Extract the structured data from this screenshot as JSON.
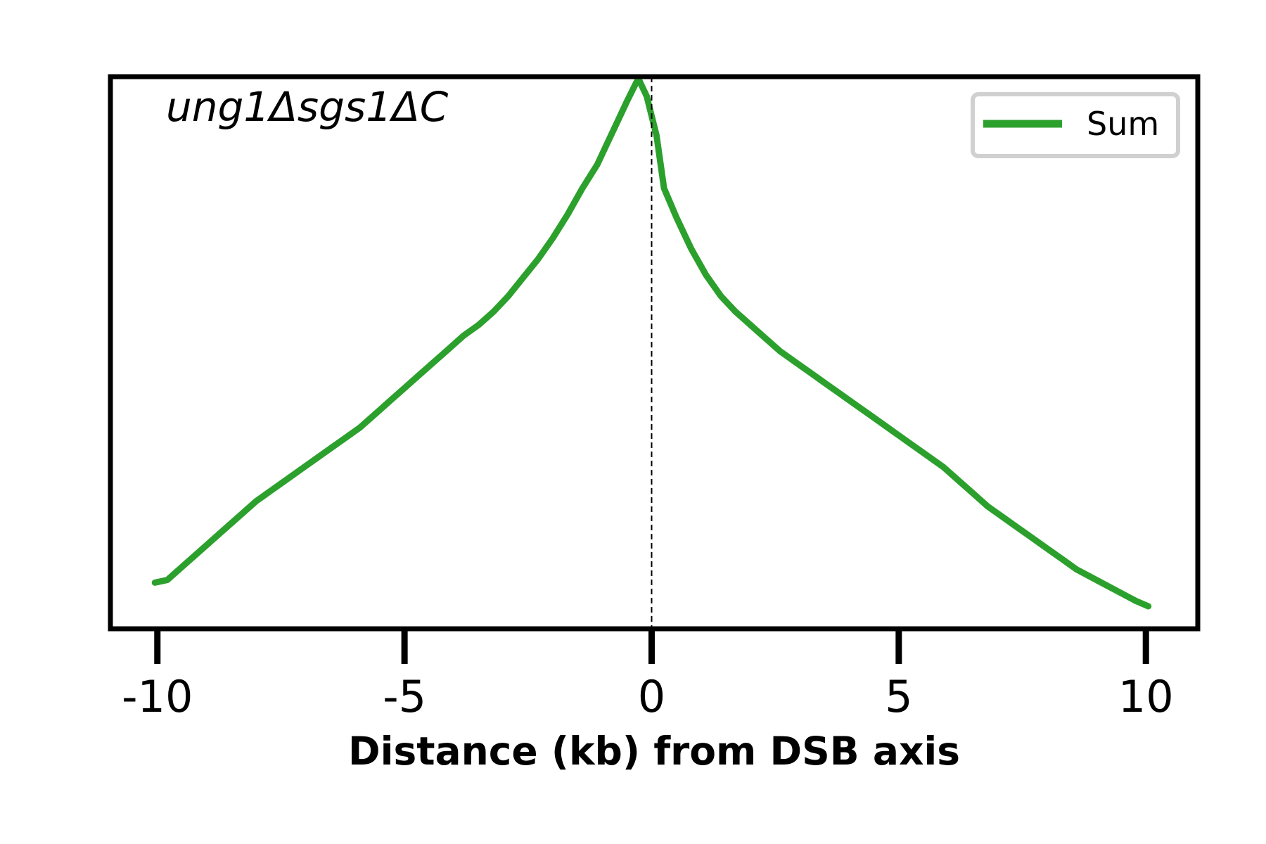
{
  "chart_data": {
    "type": "line",
    "title": "ung1Δsgs1ΔC",
    "xlabel": "Distance (kb) from DSB axis",
    "ylabel": "",
    "xlim": [
      -10.95,
      11.05
    ],
    "ylim": [
      0,
      1.05
    ],
    "x_ticks": [
      -10,
      -5,
      0,
      5,
      10
    ],
    "x_tick_labels": [
      "-10",
      "-5",
      "0",
      "5",
      "10"
    ],
    "y_ticks_shown": false,
    "grid": false,
    "legend_position": "top-right",
    "reference_line": {
      "x": 0,
      "style": "dashed",
      "color": "#000000"
    },
    "colors": {
      "series": "#2ca02c",
      "axis": "#000000",
      "legend_border": "#d0d0d0"
    },
    "series": [
      {
        "name": "Sum",
        "x": [
          -10.05,
          -9.8,
          -9.5,
          -9.2,
          -8.9,
          -8.6,
          -8.3,
          -8.0,
          -7.7,
          -7.4,
          -7.1,
          -6.8,
          -6.5,
          -6.2,
          -5.9,
          -5.6,
          -5.3,
          -5.0,
          -4.7,
          -4.4,
          -4.1,
          -3.8,
          -3.5,
          -3.2,
          -2.9,
          -2.6,
          -2.3,
          -2.0,
          -1.7,
          -1.4,
          -1.1,
          -0.9,
          -0.7,
          -0.5,
          -0.3,
          -0.25,
          -0.1,
          0.1,
          0.25,
          0.5,
          0.8,
          1.1,
          1.4,
          1.7,
          2.0,
          2.3,
          2.6,
          2.9,
          3.2,
          3.5,
          3.8,
          4.1,
          4.4,
          4.7,
          5.0,
          5.3,
          5.6,
          5.9,
          6.2,
          6.5,
          6.8,
          7.1,
          7.4,
          7.7,
          8.0,
          8.3,
          8.6,
          8.9,
          9.2,
          9.5,
          9.8,
          10.05
        ],
        "values": [
          0.045,
          0.05,
          0.075,
          0.1,
          0.125,
          0.15,
          0.175,
          0.2,
          0.22,
          0.24,
          0.26,
          0.28,
          0.3,
          0.32,
          0.34,
          0.365,
          0.39,
          0.415,
          0.44,
          0.465,
          0.49,
          0.515,
          0.535,
          0.56,
          0.59,
          0.625,
          0.66,
          0.7,
          0.745,
          0.795,
          0.84,
          0.88,
          0.92,
          0.96,
          0.998,
          1.0,
          0.97,
          0.895,
          0.795,
          0.74,
          0.68,
          0.63,
          0.59,
          0.56,
          0.535,
          0.51,
          0.485,
          0.465,
          0.445,
          0.425,
          0.405,
          0.385,
          0.365,
          0.345,
          0.325,
          0.305,
          0.285,
          0.265,
          0.24,
          0.215,
          0.19,
          0.17,
          0.15,
          0.13,
          0.11,
          0.09,
          0.07,
          0.055,
          0.04,
          0.025,
          0.01,
          0.0
        ]
      }
    ]
  }
}
